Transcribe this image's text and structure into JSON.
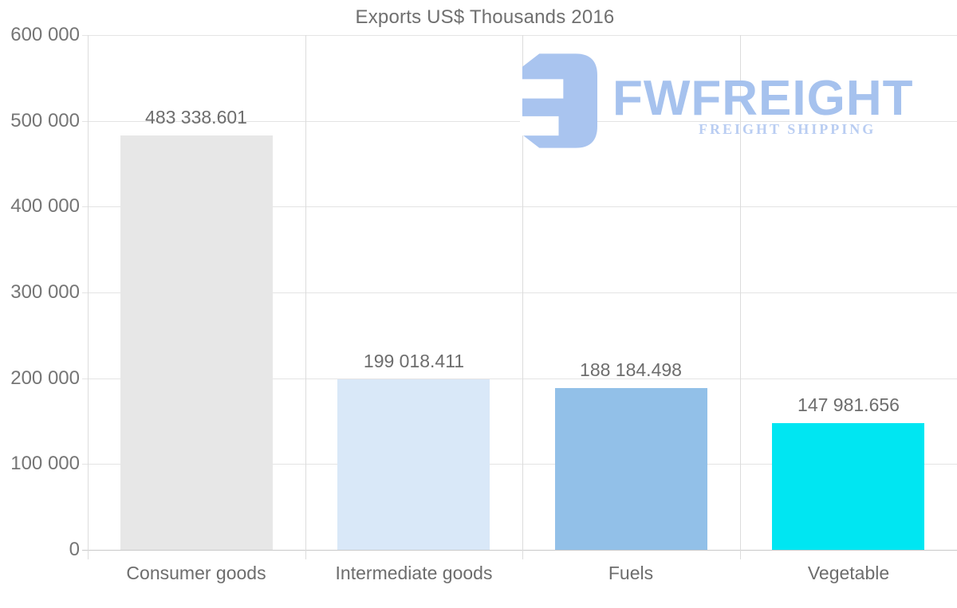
{
  "title": "Exports US$ Thousands 2016",
  "watermark": {
    "brand": "FWFREIGHT",
    "tagline": "FREIGHT SHIPPING",
    "brand_color": "#a6c2ee",
    "tagline_color": "#b9cdf2",
    "icon": "fwfreight-f-mark"
  },
  "chart_data": {
    "type": "bar",
    "title": "Exports US$ Thousands 2016",
    "categories": [
      "Consumer goods",
      "Intermediate goods",
      "Fuels",
      "Vegetable"
    ],
    "values": [
      483338.601,
      199018.411,
      188184.498,
      147981.656
    ],
    "value_labels": [
      "483 338.601",
      "199 018.411",
      "188 184.498",
      "147 981.656"
    ],
    "bar_colors": [
      "#e7e7e7",
      "#d9e8f8",
      "#92c0e8",
      "#00e6f2"
    ],
    "xlabel": "",
    "ylabel": "",
    "ylim": [
      0,
      600000
    ],
    "ytick_step": 100000,
    "ytick_labels": [
      "600 000",
      "500 000",
      "400 000",
      "300 000",
      "200 000",
      "100 000",
      "0"
    ],
    "grid": true,
    "legend": "none",
    "background": "#ffffff",
    "text_color": "#6d6d6d",
    "grid_color": "#e4e4e4"
  }
}
